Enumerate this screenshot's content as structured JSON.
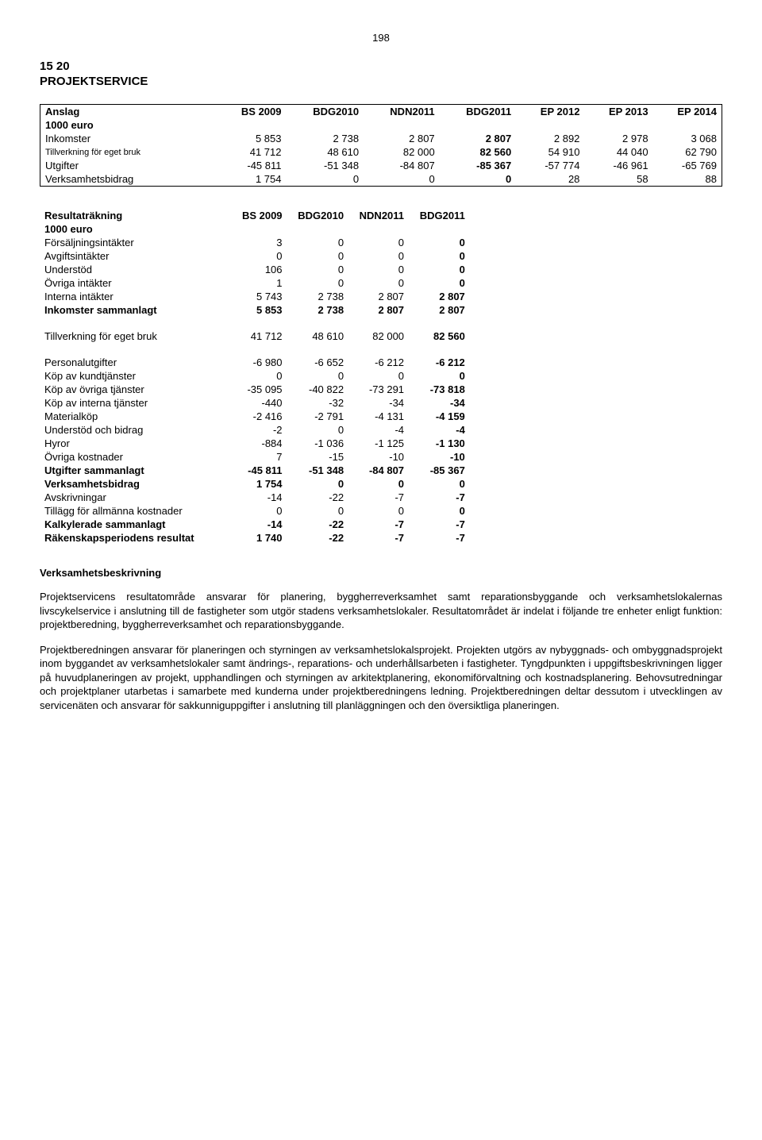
{
  "pageNumber": "198",
  "headingLine1": "15 20",
  "headingLine2": "PROJEKTSERVICE",
  "anslag": {
    "headers": [
      "Anslag",
      "BS 2009",
      "BDG2010",
      "NDN2011",
      "BDG2011",
      "EP 2012",
      "EP 2013",
      "EP 2014"
    ],
    "subheader": "1000 euro",
    "rows": [
      {
        "label": "Inkomster",
        "vals": [
          "5 853",
          "2 738",
          "2 807",
          "2 807",
          "2 892",
          "2 978",
          "3 068"
        ],
        "boldCol": 3
      },
      {
        "label": "Tillverkning för eget bruk",
        "vals": [
          "41 712",
          "48 610",
          "82 000",
          "82 560",
          "54 910",
          "44 040",
          "62 790"
        ],
        "boldCol": 3,
        "smallLabel": true
      },
      {
        "label": "Utgifter",
        "vals": [
          "-45 811",
          "-51 348",
          "-84 807",
          "-85 367",
          "-57 774",
          "-46 961",
          "-65 769"
        ],
        "boldCol": 3
      },
      {
        "label": "Verksamhetsbidrag",
        "vals": [
          "1 754",
          "0",
          "0",
          "0",
          "28",
          "58",
          "88"
        ],
        "boldCol": 3
      }
    ]
  },
  "result": {
    "headers": [
      "Resultaträkning",
      "BS 2009",
      "BDG2010",
      "NDN2011",
      "BDG2011"
    ],
    "subheader": "1000 euro",
    "group1": [
      {
        "label": "Försäljningsintäkter",
        "vals": [
          "3",
          "0",
          "0",
          "0"
        ]
      },
      {
        "label": "Avgiftsintäkter",
        "vals": [
          "0",
          "0",
          "0",
          "0"
        ]
      },
      {
        "label": "Understöd",
        "vals": [
          "106",
          "0",
          "0",
          "0"
        ]
      },
      {
        "label": "Övriga intäkter",
        "vals": [
          "1",
          "0",
          "0",
          "0"
        ]
      },
      {
        "label": "Interna intäkter",
        "vals": [
          "5 743",
          "2 738",
          "2 807",
          "2 807"
        ]
      },
      {
        "label": "Inkomster sammanlagt",
        "vals": [
          "5 853",
          "2 738",
          "2 807",
          "2 807"
        ],
        "bold": true
      }
    ],
    "group2": [
      {
        "label": "Tillverkning för eget bruk",
        "vals": [
          "41 712",
          "48 610",
          "82 000",
          "82 560"
        ]
      }
    ],
    "group3": [
      {
        "label": "Personalutgifter",
        "vals": [
          "-6 980",
          "-6 652",
          "-6 212",
          "-6 212"
        ]
      },
      {
        "label": "Köp av kundtjänster",
        "vals": [
          "0",
          "0",
          "0",
          "0"
        ]
      },
      {
        "label": "Köp av övriga tjänster",
        "vals": [
          "-35 095",
          "-40 822",
          "-73 291",
          "-73 818"
        ]
      },
      {
        "label": "Köp av interna tjänster",
        "vals": [
          "-440",
          "-32",
          "-34",
          "-34"
        ]
      },
      {
        "label": "Materialköp",
        "vals": [
          "-2 416",
          "-2 791",
          "-4 131",
          "-4 159"
        ]
      },
      {
        "label": "Understöd och bidrag",
        "vals": [
          "-2",
          "0",
          "-4",
          "-4"
        ]
      },
      {
        "label": "Hyror",
        "vals": [
          "-884",
          "-1 036",
          "-1 125",
          "-1 130"
        ]
      },
      {
        "label": "Övriga kostnader",
        "vals": [
          "7",
          "-15",
          "-10",
          "-10"
        ]
      },
      {
        "label": "Utgifter sammanlagt",
        "vals": [
          "-45 811",
          "-51 348",
          "-84 807",
          "-85 367"
        ],
        "bold": true
      },
      {
        "label": "Verksamhetsbidrag",
        "vals": [
          "1 754",
          "0",
          "0",
          "0"
        ],
        "bold": true
      },
      {
        "label": "Avskrivningar",
        "vals": [
          "-14",
          "-22",
          "-7",
          "-7"
        ]
      },
      {
        "label": "Tillägg för allmänna kostnader",
        "vals": [
          "0",
          "0",
          "0",
          "0"
        ]
      },
      {
        "label": "Kalkylerade sammanlagt",
        "vals": [
          "-14",
          "-22",
          "-7",
          "-7"
        ],
        "bold": true
      },
      {
        "label": "Räkenskapsperiodens resultat",
        "vals": [
          "1 740",
          "-22",
          "-7",
          "-7"
        ],
        "bold": true
      }
    ]
  },
  "desc": {
    "title": "Verksamhetsbeskrivning",
    "p1": "Projektservicens resultatområde ansvarar för planering, byggherreverksamhet samt reparationsbyggande och verksamhetslokalernas livscykelservice i anslutning till de fastigheter som utgör stadens verksamhetslokaler. Resultatområdet är indelat i följande tre enheter enligt funktion: projektberedning, byggherreverksamhet och reparationsbyggande.",
    "p2": "Projektberedningen ansvarar för planeringen och styrningen av verksamhetslokalsprojekt. Projekten utgörs av nybyggnads- och ombyggnadsprojekt inom byggandet av verksamhetslokaler samt ändrings-, reparations- och underhållsarbeten i fastigheter. Tyngdpunkten i uppgiftsbeskrivningen ligger på huvudplaneringen av projekt, upphandlingen och styrningen av arkitektplanering, ekonomiförvaltning och kostnadsplanering. Behovsutredningar och projektplaner utarbetas i samarbete med kunderna under projektberedningens ledning. Projektberedningen deltar dessutom i utvecklingen av servicenäten och ansvarar för sakkunniguppgifter i anslutning till planläggningen och den översiktliga planeringen."
  }
}
